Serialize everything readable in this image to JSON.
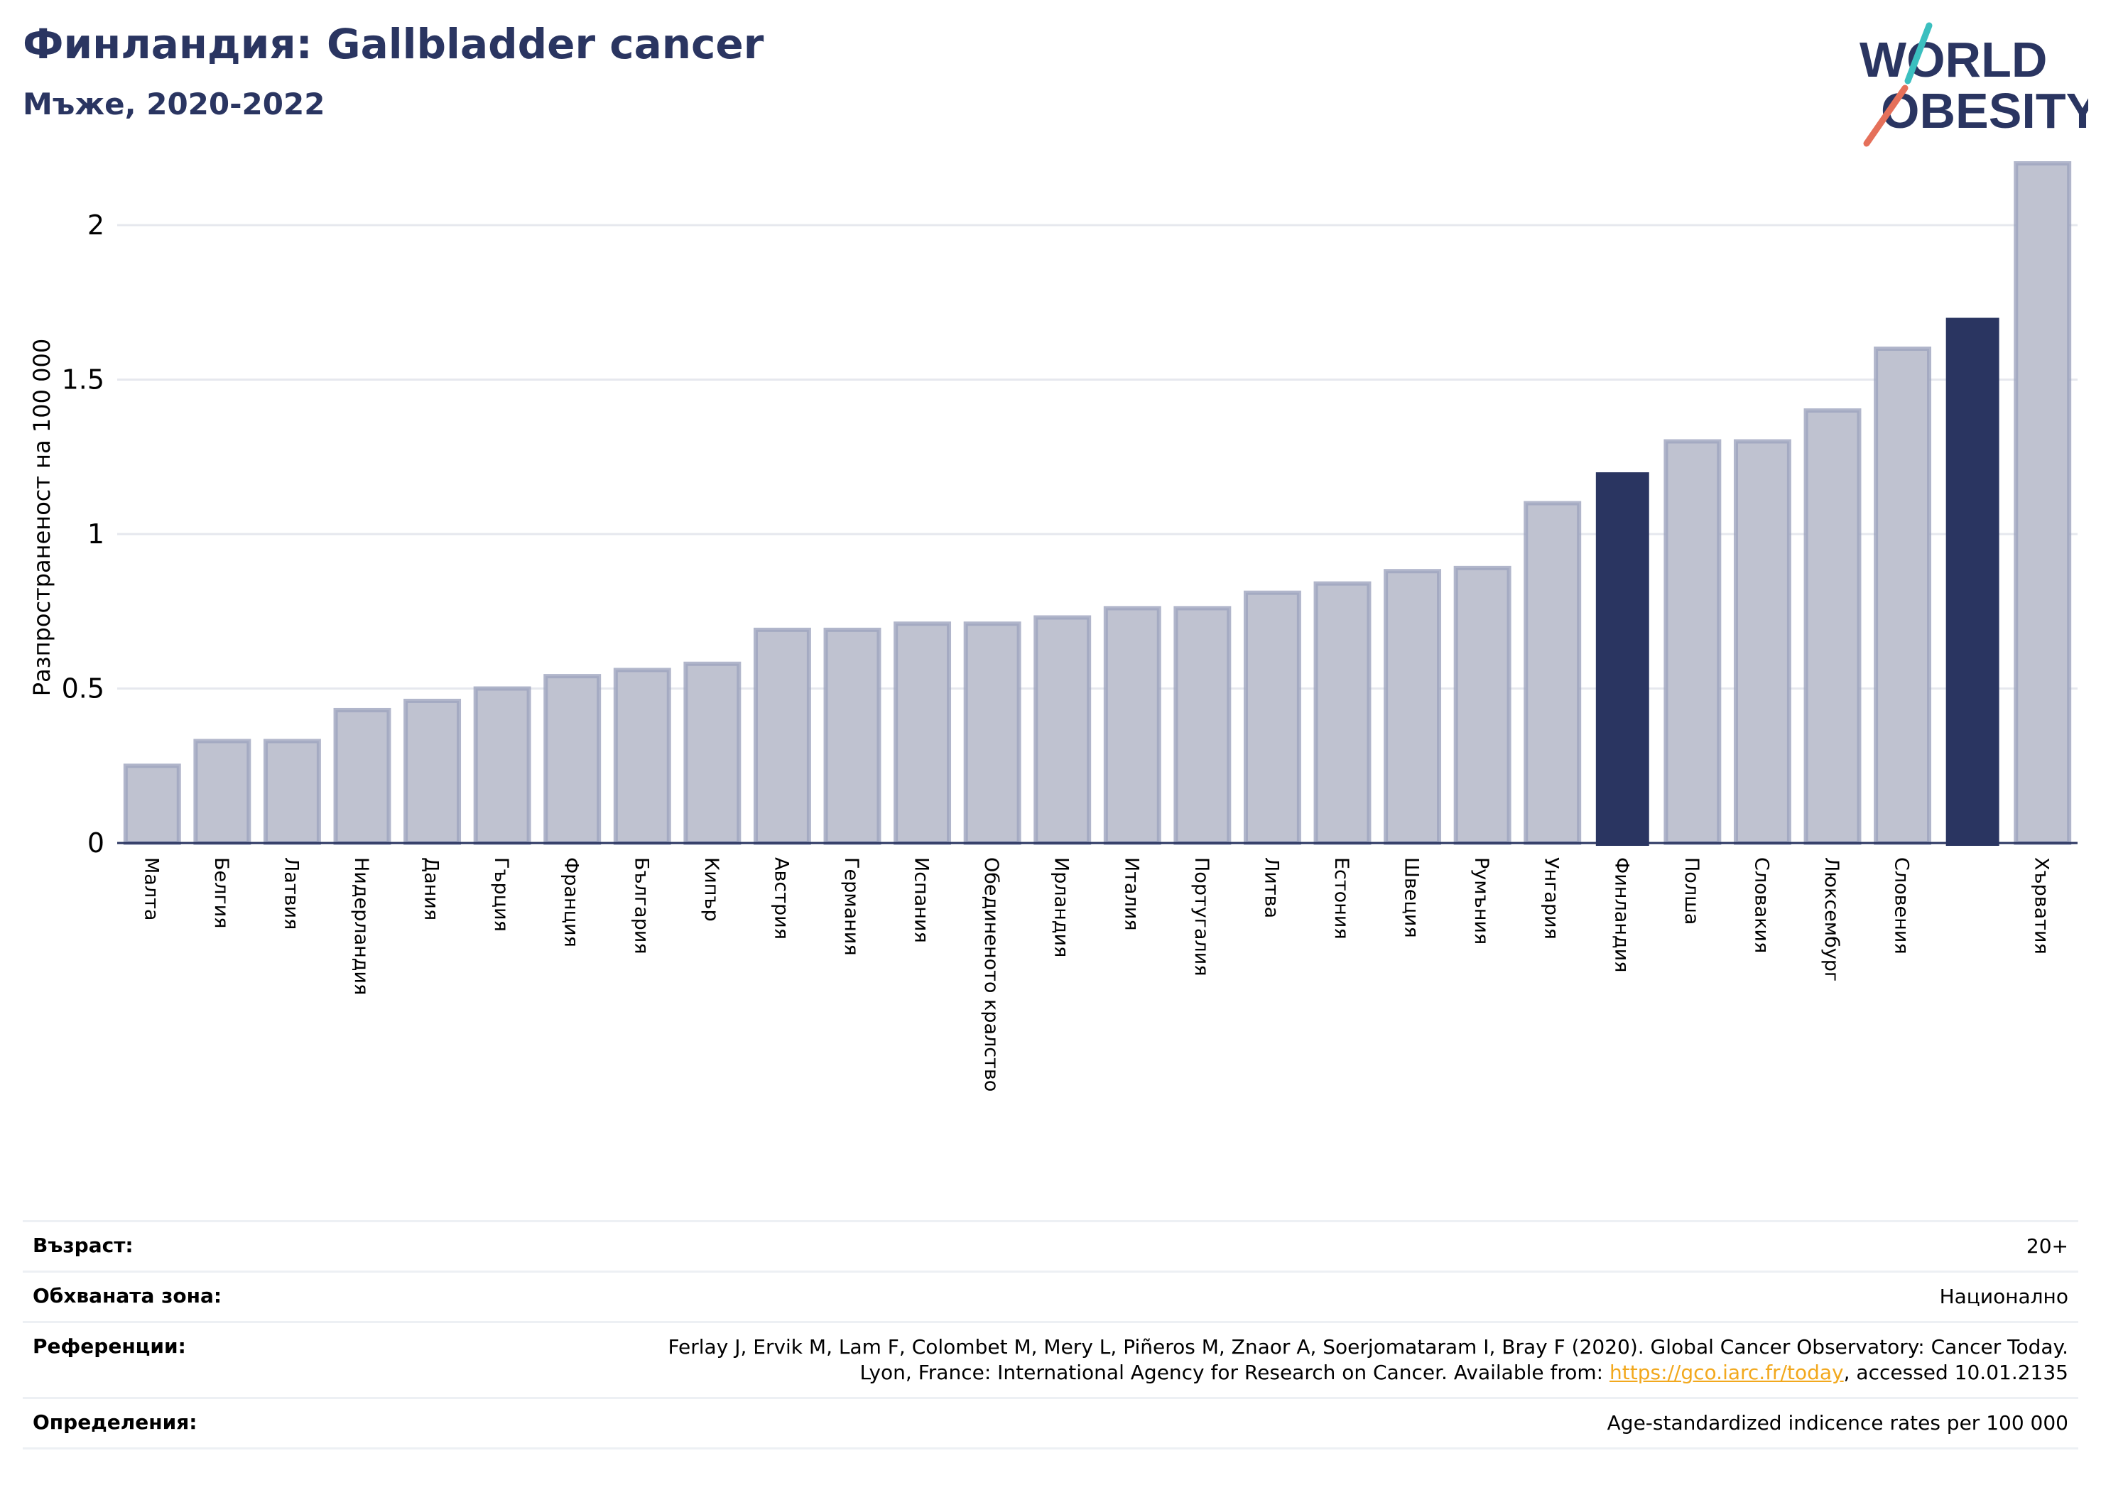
{
  "title": "Финландия: Gallbladder cancer",
  "subtitle": "Мъже, 2020-2022",
  "logo": {
    "line1": "WORLD",
    "line2": "OBESITY"
  },
  "colors": {
    "bar": "#bfc2d0",
    "bar_edge": "#9ea4be",
    "highlight": "#2a3561",
    "grid": "#e6e8ee",
    "axis": "#2a3561"
  },
  "chart_data": {
    "type": "bar",
    "ylabel": "Разпространеност  на 100 000",
    "ylim": [
      0,
      2.2
    ],
    "yticks": [
      0,
      0.5,
      1,
      1.5,
      2
    ],
    "ytick_labels": [
      "0",
      "0.5",
      "1",
      "1.5",
      "2"
    ],
    "grid": true,
    "categories": [
      "Малта",
      "Белгия",
      "Латвия",
      "Нидерландия",
      "Дания",
      "Гърция",
      "Франция",
      "България",
      "Кипър",
      "Австрия",
      "Германия",
      "Испания",
      "Обединеното кралство",
      "Ирландия",
      "Италия",
      "Португалия",
      "Литва",
      "Естония",
      "Швеция",
      "Румъния",
      "Унгария",
      "Финландия",
      "Полша",
      "Словакия",
      "Люксембург",
      "Словения",
      "",
      "Хърватия"
    ],
    "values": [
      0.25,
      0.33,
      0.33,
      0.43,
      0.46,
      0.5,
      0.54,
      0.56,
      0.58,
      0.69,
      0.69,
      0.71,
      0.71,
      0.73,
      0.76,
      0.76,
      0.81,
      0.84,
      0.88,
      0.89,
      1.1,
      1.2,
      1.3,
      1.3,
      1.4,
      1.6,
      1.7,
      2.2
    ],
    "highlighted": [
      21,
      26
    ]
  },
  "meta": [
    {
      "label": "Възраст:",
      "value": "20+"
    },
    {
      "label": "Обхваната зона:",
      "value": "Национално"
    },
    {
      "label": "Референции:",
      "value_line1": "Ferlay J, Ervik M, Lam F, Colombet M, Mery L, Piñeros M, Znaor A, Soerjomataram I, Bray F (2020). Global Cancer Observatory: Cancer Today.",
      "value_line2_pre": "Lyon, France: International Agency for Research on Cancer. Available from: ",
      "value_link": "https://gco.iarc.fr/today",
      "value_line2_post": ", accessed 10.01.2135"
    },
    {
      "label": "Определения:",
      "value": "Age-standardized indicence rates per 100 000"
    }
  ]
}
